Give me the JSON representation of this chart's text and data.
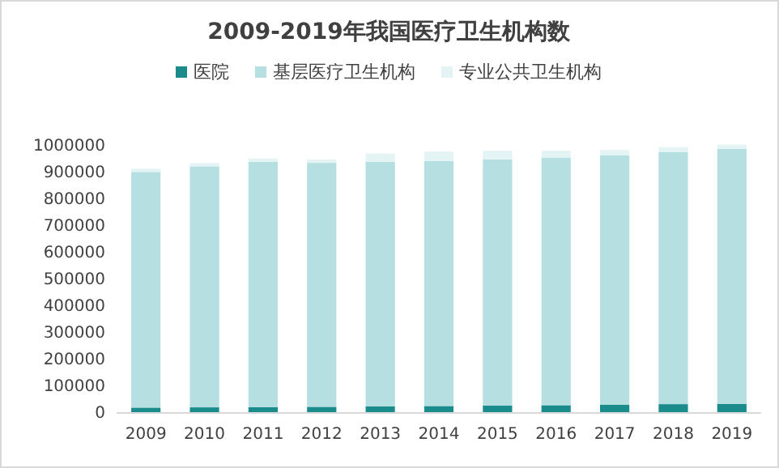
{
  "chart_data": {
    "type": "bar",
    "title": "2009-2019年我国医疗卫生机构数",
    "stacked": true,
    "legend": "top",
    "grid": false,
    "categories": [
      "2009",
      "2010",
      "2011",
      "2012",
      "2013",
      "2014",
      "2015",
      "2016",
      "2017",
      "2018",
      "2019"
    ],
    "series": [
      {
        "name": "医院",
        "color": "#1a8c8c",
        "values": [
          20000,
          21000,
          22000,
          23000,
          25000,
          26000,
          28000,
          29000,
          31000,
          33000,
          34000
        ]
      },
      {
        "name": "基层医疗卫生机构",
        "color": "#b5dfe0",
        "values": [
          882000,
          902000,
          918000,
          913000,
          915000,
          917000,
          921000,
          927000,
          933000,
          944000,
          954000
        ]
      },
      {
        "name": "专业公共卫生机构",
        "color": "#e4f4f4",
        "values": [
          12000,
          12000,
          12000,
          12000,
          31000,
          35000,
          32000,
          25000,
          20000,
          18000,
          16000
        ]
      }
    ],
    "ylim": [
      0,
      1000000
    ],
    "yticks": [
      0,
      100000,
      200000,
      300000,
      400000,
      500000,
      600000,
      700000,
      800000,
      900000,
      1000000
    ]
  }
}
